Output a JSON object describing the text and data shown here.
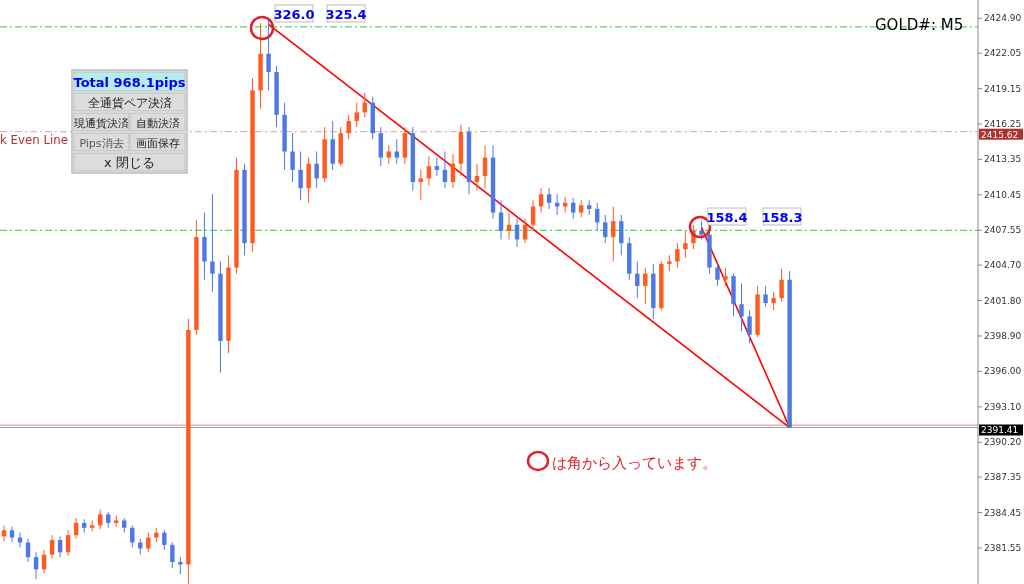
{
  "chart_data": {
    "type": "candlestick",
    "categories": [
      null,
      null,
      null,
      null,
      null,
      null,
      null,
      null,
      null,
      null,
      null,
      null,
      null,
      null,
      null,
      null,
      null,
      null,
      null,
      null,
      null,
      null,
      null,
      null,
      null,
      null,
      null,
      null,
      null,
      null,
      null,
      null,
      null,
      null,
      null,
      null,
      null,
      null,
      null,
      null,
      null,
      null,
      null,
      null,
      null,
      null,
      null,
      null,
      null,
      null,
      null,
      null,
      null,
      null,
      null,
      null,
      null,
      null,
      null,
      null,
      null,
      null,
      null,
      null,
      null,
      null,
      null,
      null,
      null,
      null,
      null,
      null,
      null,
      null,
      null,
      null,
      null,
      null,
      null,
      null,
      null,
      null,
      null,
      null,
      null,
      null,
      null,
      null,
      null,
      null,
      null,
      null,
      null,
      null,
      null,
      null,
      null,
      null,
      null,
      null,
      null,
      null,
      null,
      null,
      null,
      null,
      null,
      null,
      null,
      null,
      null,
      null,
      null,
      null,
      null,
      null,
      null,
      null,
      null,
      null,
      null,
      null
    ],
    "ohlc": [
      [
        2382.5,
        2383.4,
        2382.1,
        2383.0
      ],
      [
        2383.0,
        2383.3,
        2382.0,
        2382.4
      ],
      [
        2382.4,
        2382.8,
        2381.6,
        2382.0
      ],
      [
        2382.0,
        2382.3,
        2380.4,
        2380.8
      ],
      [
        2380.8,
        2381.2,
        2379.0,
        2379.8
      ],
      [
        2379.8,
        2381.4,
        2379.5,
        2381.0
      ],
      [
        2381.0,
        2382.6,
        2380.7,
        2382.2
      ],
      [
        2382.2,
        2382.5,
        2380.8,
        2381.2
      ],
      [
        2381.2,
        2383.0,
        2380.9,
        2382.6
      ],
      [
        2382.6,
        2384.0,
        2382.3,
        2383.6
      ],
      [
        2383.6,
        2383.9,
        2382.8,
        2383.2
      ],
      [
        2383.2,
        2383.8,
        2382.9,
        2383.4
      ],
      [
        2383.4,
        2384.7,
        2383.1,
        2384.3
      ],
      [
        2384.3,
        2384.5,
        2383.2,
        2383.6
      ],
      [
        2383.6,
        2384.2,
        2383.3,
        2383.8
      ],
      [
        2383.8,
        2384.0,
        2382.8,
        2383.2
      ],
      [
        2383.2,
        2383.4,
        2381.6,
        2382.0
      ],
      [
        2382.0,
        2382.3,
        2381.0,
        2381.5
      ],
      [
        2381.5,
        2382.8,
        2381.2,
        2382.4
      ],
      [
        2382.4,
        2383.2,
        2382.0,
        2382.8
      ],
      [
        2382.8,
        2383.0,
        2381.4,
        2381.8
      ],
      [
        2381.8,
        2382.0,
        2379.9,
        2380.4
      ],
      [
        2380.4,
        2380.8,
        2379.4,
        2380.2
      ],
      [
        2380.2,
        2400.3,
        2378.6,
        2399.4
      ],
      [
        2399.4,
        2408.4,
        2399.0,
        2407.0
      ],
      [
        2407.0,
        2409.0,
        2403.5,
        2405.0
      ],
      [
        2405.0,
        2410.5,
        2402.5,
        2404.0
      ],
      [
        2404.0,
        2405.0,
        2395.9,
        2398.5
      ],
      [
        2398.5,
        2405.5,
        2397.5,
        2404.5
      ],
      [
        2404.5,
        2413.5,
        2404.0,
        2412.5
      ],
      [
        2412.5,
        2413.0,
        2405.5,
        2406.5
      ],
      [
        2406.5,
        2420.0,
        2405.8,
        2419.0
      ],
      [
        2419.0,
        2424.5,
        2417.5,
        2422.0
      ],
      [
        2422.0,
        2424.9,
        2419.0,
        2420.5
      ],
      [
        2420.5,
        2421.0,
        2416.0,
        2417.0
      ],
      [
        2417.0,
        2418.0,
        2412.5,
        2414.0
      ],
      [
        2414.0,
        2415.5,
        2411.5,
        2412.5
      ],
      [
        2412.5,
        2414.0,
        2410.0,
        2411.0
      ],
      [
        2411.0,
        2413.5,
        2409.8,
        2413.0
      ],
      [
        2413.0,
        2414.0,
        2411.0,
        2411.8
      ],
      [
        2411.8,
        2416.0,
        2411.5,
        2415.0
      ],
      [
        2415.0,
        2416.5,
        2412.5,
        2413.0
      ],
      [
        2413.0,
        2416.0,
        2412.8,
        2415.5
      ],
      [
        2415.5,
        2417.0,
        2415.0,
        2416.5
      ],
      [
        2416.5,
        2418.0,
        2416.0,
        2417.2
      ],
      [
        2417.2,
        2418.8,
        2416.8,
        2418.0
      ],
      [
        2418.0,
        2418.5,
        2415.0,
        2415.5
      ],
      [
        2415.5,
        2416.0,
        2412.8,
        2413.5
      ],
      [
        2413.5,
        2414.5,
        2413.0,
        2414.0
      ],
      [
        2414.0,
        2415.0,
        2413.0,
        2413.5
      ],
      [
        2413.5,
        2416.0,
        2413.0,
        2415.5
      ],
      [
        2415.5,
        2416.0,
        2410.8,
        2411.5
      ],
      [
        2411.5,
        2412.5,
        2410.0,
        2411.8
      ],
      [
        2411.8,
        2413.6,
        2411.2,
        2412.8
      ],
      [
        2412.8,
        2413.5,
        2412.0,
        2412.5
      ],
      [
        2412.5,
        2414.0,
        2411.0,
        2411.5
      ],
      [
        2411.5,
        2413.8,
        2411.0,
        2413.0
      ],
      [
        2413.0,
        2416.2,
        2412.0,
        2415.6
      ],
      [
        2415.6,
        2416.0,
        2410.5,
        2411.5
      ],
      [
        2411.5,
        2413.0,
        2410.8,
        2412.0
      ],
      [
        2412.0,
        2414.5,
        2411.0,
        2413.5
      ],
      [
        2413.5,
        2414.5,
        2408.5,
        2409.0
      ],
      [
        2409.0,
        2410.0,
        2406.8,
        2407.5
      ],
      [
        2407.5,
        2409.0,
        2406.8,
        2408.0
      ],
      [
        2408.0,
        2408.5,
        2406.2,
        2406.8
      ],
      [
        2406.8,
        2408.5,
        2406.5,
        2408.0
      ],
      [
        2408.0,
        2410.0,
        2407.5,
        2409.5
      ],
      [
        2409.5,
        2411.0,
        2409.0,
        2410.5
      ],
      [
        2410.5,
        2411.0,
        2409.3,
        2409.8
      ],
      [
        2409.8,
        2410.5,
        2408.8,
        2409.5
      ],
      [
        2409.5,
        2410.3,
        2409.0,
        2409.8
      ],
      [
        2409.8,
        2410.2,
        2408.5,
        2409.0
      ],
      [
        2409.0,
        2410.0,
        2408.6,
        2409.6
      ],
      [
        2409.6,
        2410.0,
        2408.8,
        2409.3
      ],
      [
        2409.3,
        2409.8,
        2407.5,
        2408.2
      ],
      [
        2408.2,
        2408.8,
        2406.5,
        2407.0
      ],
      [
        2407.0,
        2409.5,
        2405.0,
        2408.3
      ],
      [
        2408.3,
        2408.8,
        2405.5,
        2406.5
      ],
      [
        2406.5,
        2407.0,
        2403.5,
        2404.0
      ],
      [
        2404.0,
        2405.0,
        2402.0,
        2403.0
      ],
      [
        2403.0,
        2404.5,
        2401.5,
        2404.0
      ],
      [
        2404.0,
        2404.8,
        2400.3,
        2401.2
      ],
      [
        2401.2,
        2405.0,
        2401.0,
        2404.8
      ],
      [
        2404.8,
        2405.5,
        2404.2,
        2405.0
      ],
      [
        2405.0,
        2406.5,
        2404.5,
        2406.0
      ],
      [
        2406.0,
        2407.5,
        2405.3,
        2406.5
      ],
      [
        2406.5,
        2408.0,
        2406.0,
        2407.5
      ],
      [
        2407.5,
        2408.3,
        2406.8,
        2407.2
      ],
      [
        2407.2,
        2407.6,
        2404.0,
        2404.5
      ],
      [
        2404.5,
        2405.0,
        2403.0,
        2403.5
      ],
      [
        2403.5,
        2404.5,
        2403.0,
        2403.8
      ],
      [
        2403.8,
        2404.0,
        2400.5,
        2401.5
      ],
      [
        2401.5,
        2403.2,
        2399.3,
        2400.5
      ],
      [
        2400.5,
        2401.0,
        2398.3,
        2399.0
      ],
      [
        2399.0,
        2403.0,
        2398.8,
        2402.3
      ],
      [
        2402.3,
        2403.0,
        2401.3,
        2401.6
      ],
      [
        2401.6,
        2402.5,
        2401.0,
        2402.0
      ],
      [
        2402.0,
        2404.4,
        2401.7,
        2403.5
      ],
      [
        2403.5,
        2404.2,
        2391.4,
        2391.4
      ],
      null,
      null,
      null,
      null,
      null,
      null,
      null,
      null,
      null,
      null,
      null,
      null,
      null,
      null,
      null,
      null,
      null,
      null,
      null,
      null,
      null,
      null,
      null
    ],
    "colors": [
      "#ff5a1f",
      "#4d79e6",
      "#4d79e6",
      "#4d79e6",
      "#4d79e6",
      "#ff5a1f",
      "#ff5a1f",
      "#4d79e6",
      "#ff5a1f",
      "#ff5a1f",
      "#4d79e6",
      "#ff5a1f",
      "#ff5a1f",
      "#4d79e6",
      "#ff5a1f",
      "#4d79e6",
      "#4d79e6",
      "#4d79e6",
      "#ff5a1f",
      "#ff5a1f",
      "#4d79e6",
      "#4d79e6",
      "#4d79e6",
      "#ff5a1f",
      "#ff5a1f",
      "#4d79e6",
      "#4d79e6",
      "#4d79e6",
      "#ff5a1f",
      "#ff5a1f",
      "#4d79e6",
      "#ff5a1f",
      "#ff5a1f",
      "#4d79e6",
      "#4d79e6",
      "#4d79e6",
      "#4d79e6",
      "#4d79e6",
      "#ff5a1f",
      "#4d79e6",
      "#ff5a1f",
      "#4d79e6",
      "#ff5a1f",
      "#ff5a1f",
      "#ff5a1f",
      "#ff5a1f",
      "#4d79e6",
      "#4d79e6",
      "#ff5a1f",
      "#4d79e6",
      "#ff5a1f",
      "#4d79e6",
      "#ff5a1f",
      "#ff5a1f",
      "#4d79e6",
      "#4d79e6",
      "#ff5a1f",
      "#ff5a1f",
      "#4d79e6",
      "#ff5a1f",
      "#ff5a1f",
      "#4d79e6",
      "#4d79e6",
      "#ff5a1f",
      "#4d79e6",
      "#ff5a1f",
      "#ff5a1f",
      "#ff5a1f",
      "#4d79e6",
      "#4d79e6",
      "#ff5a1f",
      "#4d79e6",
      "#ff5a1f",
      "#4d79e6",
      "#4d79e6",
      "#4d79e6",
      "#ff5a1f",
      "#4d79e6",
      "#4d79e6",
      "#4d79e6",
      "#ff5a1f",
      "#4d79e6",
      "#ff5a1f",
      "#ff5a1f",
      "#ff5a1f",
      "#ff5a1f",
      "#ff5a1f",
      "#4d79e6",
      "#4d79e6",
      "#4d79e6",
      "#ff5a1f",
      "#4d79e6",
      "#4d79e6",
      "#4d79e6",
      "#ff5a1f",
      "#4d79e6",
      "#ff5a1f",
      "#ff5a1f",
      "#4d79e6",
      null,
      null,
      null,
      null,
      null,
      null,
      null,
      null,
      null,
      null,
      null,
      null,
      null,
      null,
      null,
      null,
      null,
      null,
      null,
      null,
      null,
      null,
      null
    ],
    "series": [
      {
        "type": "line",
        "color": "#ff0000",
        "values": [
          null,
          null,
          null,
          null,
          null,
          null,
          null,
          null,
          null,
          null,
          null,
          null,
          null,
          null,
          null,
          null,
          null,
          null,
          null,
          null,
          null,
          null,
          null,
          null,
          null,
          null,
          null,
          null,
          null,
          null,
          null,
          null,
          null,
          2424.4,
          null,
          null,
          null,
          null,
          null,
          null,
          null,
          null,
          null,
          null,
          null,
          null,
          null,
          null,
          null,
          null,
          null,
          null,
          null,
          null,
          null,
          null,
          null,
          null,
          null,
          null,
          null,
          null,
          null,
          null,
          null,
          null,
          null,
          null,
          null,
          null,
          null,
          null,
          null,
          null,
          null,
          null,
          null,
          null,
          null,
          null,
          null,
          null,
          null,
          null,
          null,
          null,
          null,
          null,
          null,
          null,
          null,
          null,
          null,
          null,
          null,
          null,
          null,
          null,
          2391.4,
          null,
          null,
          null,
          null,
          null,
          null,
          null,
          null,
          null,
          null,
          null,
          null,
          null,
          null,
          null,
          null,
          null,
          null,
          null,
          null,
          null,
          null,
          null
        ]
      },
      {
        "type": "line",
        "color": "#ff0000",
        "values": [
          null,
          null,
          null,
          null,
          null,
          null,
          null,
          null,
          null,
          null,
          null,
          null,
          null,
          null,
          null,
          null,
          null,
          null,
          null,
          null,
          null,
          null,
          null,
          null,
          null,
          null,
          null,
          null,
          null,
          null,
          null,
          null,
          null,
          null,
          null,
          null,
          null,
          null,
          null,
          null,
          null,
          null,
          null,
          null,
          null,
          null,
          null,
          null,
          null,
          null,
          null,
          null,
          null,
          null,
          null,
          null,
          null,
          null,
          null,
          null,
          null,
          null,
          null,
          null,
          null,
          null,
          null,
          null,
          null,
          null,
          null,
          null,
          null,
          null,
          null,
          null,
          null,
          null,
          null,
          null,
          null,
          null,
          null,
          null,
          null,
          null,
          null,
          2407.8,
          null,
          null,
          null,
          null,
          null,
          null,
          null,
          null,
          null,
          null,
          2391.4,
          null,
          null,
          null,
          null,
          null,
          null,
          null,
          null,
          null,
          null,
          null,
          null,
          null,
          null,
          null,
          null,
          null,
          null,
          null,
          null,
          null,
          null,
          null
        ]
      }
    ],
    "ylim": [
      2378.6,
      2426.4
    ],
    "yticks": [
      {
        "value": 2424.9,
        "label": "2424.90"
      },
      {
        "value": 2422.05,
        "label": "2422.05"
      },
      {
        "value": 2419.15,
        "label": "2419.15"
      },
      {
        "value": 2416.25,
        "label": "2416.25"
      },
      {
        "value": 2413.35,
        "label": "2413.35"
      },
      {
        "value": 2410.45,
        "label": "2410.45"
      },
      {
        "value": 2407.55,
        "label": "2407.55"
      },
      {
        "value": 2404.7,
        "label": "2404.70"
      },
      {
        "value": 2401.8,
        "label": "2401.80"
      },
      {
        "value": 2398.9,
        "label": "2398.90"
      },
      {
        "value": 2396.0,
        "label": "2396.00"
      },
      {
        "value": 2393.1,
        "label": "2393.10"
      },
      {
        "value": 2390.2,
        "label": "2390.20"
      },
      {
        "value": 2387.35,
        "label": "2387.35"
      },
      {
        "value": 2384.45,
        "label": "2384.45"
      },
      {
        "value": 2381.55,
        "label": "2381.55"
      }
    ],
    "tick_labels": "y",
    "ref_lines": [
      {
        "axis": "y",
        "value": 2424.2,
        "color": "#33cc33",
        "line_style": "dashed"
      },
      {
        "axis": "y",
        "value": 2407.55,
        "color": "#33cc33",
        "line_style": "dashed"
      },
      {
        "axis": "y",
        "value": 2415.62,
        "label": "k Even Line",
        "color": "#e0a0a0",
        "line_style": "dashed"
      },
      {
        "axis": "y",
        "value": 2391.6,
        "color": "#ff8080",
        "line_style": "solid"
      },
      {
        "axis": "y",
        "value": 2391.41,
        "color": "#a0a8b0",
        "line_style": "solid"
      }
    ],
    "annotations": [
      "GOLD#: M5",
      "326.0",
      "325.4",
      "158.4",
      "158.3",
      "は角から入っています。",
      "Total 968.1pips",
      "全通貨ペア決済",
      "現通貨決済",
      "自動決済",
      "Pips消去",
      "画面保存",
      "x 閉じる",
      "2415.62",
      "2391.41"
    ]
  }
}
